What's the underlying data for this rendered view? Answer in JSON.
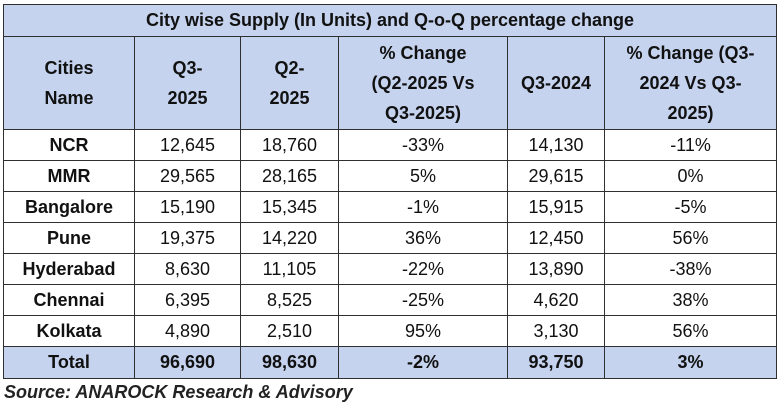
{
  "table": {
    "title": "City wise Supply (In Units) and Q-o-Q percentage change",
    "headers": [
      {
        "line1": "Cities",
        "line2": "Name",
        "line3": ""
      },
      {
        "line1": "Q3-",
        "line2": "2025",
        "line3": ""
      },
      {
        "line1": "Q2-",
        "line2": "2025",
        "line3": ""
      },
      {
        "line1": "% Change",
        "line2": "(Q2-2025 Vs",
        "line3": "Q3-2025)"
      },
      {
        "line1": "Q3-2024",
        "line2": "",
        "line3": ""
      },
      {
        "line1": "% Change (Q3-",
        "line2": "2024 Vs Q3-",
        "line3": "2025)"
      }
    ],
    "rows": [
      [
        "NCR",
        "12,645",
        "18,760",
        "-33%",
        "14,130",
        "-11%"
      ],
      [
        "MMR",
        "29,565",
        "28,165",
        "5%",
        "29,615",
        "0%"
      ],
      [
        "Bangalore",
        "15,190",
        "15,345",
        "-1%",
        "15,915",
        "-5%"
      ],
      [
        "Pune",
        "19,375",
        "14,220",
        "36%",
        "12,450",
        "56%"
      ],
      [
        "Hyderabad",
        "8,630",
        "11,105",
        "-22%",
        "13,890",
        "-38%"
      ],
      [
        "Chennai",
        "6,395",
        "8,525",
        "-25%",
        "4,620",
        "38%"
      ],
      [
        "Kolkata",
        "4,890",
        "2,510",
        "95%",
        "3,130",
        "56%"
      ]
    ],
    "total": [
      "Total",
      "96,690",
      "98,630",
      "-2%",
      "93,750",
      "3%"
    ]
  },
  "source": "Source: ANAROCK Research & Advisory",
  "colors": {
    "header_fill": "#c5d3ee",
    "border": "#2f2f2f",
    "body_fill": "#ffffff"
  }
}
